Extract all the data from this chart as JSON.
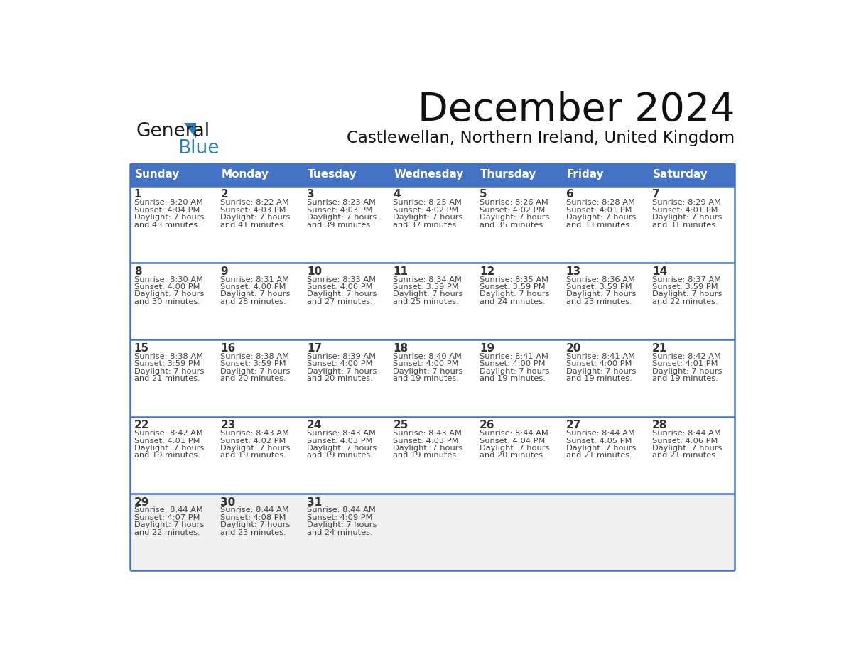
{
  "title": "December 2024",
  "subtitle": "Castlewellan, Northern Ireland, United Kingdom",
  "days_of_week": [
    "Sunday",
    "Monday",
    "Tuesday",
    "Wednesday",
    "Thursday",
    "Friday",
    "Saturday"
  ],
  "header_bg": "#4472C4",
  "header_text": "#FFFFFF",
  "row_bg_white": "#FFFFFF",
  "row_bg_gray": "#F0F0F0",
  "date_text_color": "#333333",
  "info_text_color": "#444444",
  "border_color": "#4472C4",
  "logo_dark_color": "#1a1a1a",
  "logo_blue_color": "#2980B9",
  "weeks": [
    {
      "bg": "#FFFFFF",
      "days": [
        {
          "date": "1",
          "sunrise": "8:20 AM",
          "sunset": "4:04 PM",
          "daylight_hrs": "7 hours",
          "daylight_min": "and 43 minutes."
        },
        {
          "date": "2",
          "sunrise": "8:22 AM",
          "sunset": "4:03 PM",
          "daylight_hrs": "7 hours",
          "daylight_min": "and 41 minutes."
        },
        {
          "date": "3",
          "sunrise": "8:23 AM",
          "sunset": "4:03 PM",
          "daylight_hrs": "7 hours",
          "daylight_min": "and 39 minutes."
        },
        {
          "date": "4",
          "sunrise": "8:25 AM",
          "sunset": "4:02 PM",
          "daylight_hrs": "7 hours",
          "daylight_min": "and 37 minutes."
        },
        {
          "date": "5",
          "sunrise": "8:26 AM",
          "sunset": "4:02 PM",
          "daylight_hrs": "7 hours",
          "daylight_min": "and 35 minutes."
        },
        {
          "date": "6",
          "sunrise": "8:28 AM",
          "sunset": "4:01 PM",
          "daylight_hrs": "7 hours",
          "daylight_min": "and 33 minutes."
        },
        {
          "date": "7",
          "sunrise": "8:29 AM",
          "sunset": "4:01 PM",
          "daylight_hrs": "7 hours",
          "daylight_min": "and 31 minutes."
        }
      ]
    },
    {
      "bg": "#FFFFFF",
      "days": [
        {
          "date": "8",
          "sunrise": "8:30 AM",
          "sunset": "4:00 PM",
          "daylight_hrs": "7 hours",
          "daylight_min": "and 30 minutes."
        },
        {
          "date": "9",
          "sunrise": "8:31 AM",
          "sunset": "4:00 PM",
          "daylight_hrs": "7 hours",
          "daylight_min": "and 28 minutes."
        },
        {
          "date": "10",
          "sunrise": "8:33 AM",
          "sunset": "4:00 PM",
          "daylight_hrs": "7 hours",
          "daylight_min": "and 27 minutes."
        },
        {
          "date": "11",
          "sunrise": "8:34 AM",
          "sunset": "3:59 PM",
          "daylight_hrs": "7 hours",
          "daylight_min": "and 25 minutes."
        },
        {
          "date": "12",
          "sunrise": "8:35 AM",
          "sunset": "3:59 PM",
          "daylight_hrs": "7 hours",
          "daylight_min": "and 24 minutes."
        },
        {
          "date": "13",
          "sunrise": "8:36 AM",
          "sunset": "3:59 PM",
          "daylight_hrs": "7 hours",
          "daylight_min": "and 23 minutes."
        },
        {
          "date": "14",
          "sunrise": "8:37 AM",
          "sunset": "3:59 PM",
          "daylight_hrs": "7 hours",
          "daylight_min": "and 22 minutes."
        }
      ]
    },
    {
      "bg": "#FFFFFF",
      "days": [
        {
          "date": "15",
          "sunrise": "8:38 AM",
          "sunset": "3:59 PM",
          "daylight_hrs": "7 hours",
          "daylight_min": "and 21 minutes."
        },
        {
          "date": "16",
          "sunrise": "8:38 AM",
          "sunset": "3:59 PM",
          "daylight_hrs": "7 hours",
          "daylight_min": "and 20 minutes."
        },
        {
          "date": "17",
          "sunrise": "8:39 AM",
          "sunset": "4:00 PM",
          "daylight_hrs": "7 hours",
          "daylight_min": "and 20 minutes."
        },
        {
          "date": "18",
          "sunrise": "8:40 AM",
          "sunset": "4:00 PM",
          "daylight_hrs": "7 hours",
          "daylight_min": "and 19 minutes."
        },
        {
          "date": "19",
          "sunrise": "8:41 AM",
          "sunset": "4:00 PM",
          "daylight_hrs": "7 hours",
          "daylight_min": "and 19 minutes."
        },
        {
          "date": "20",
          "sunrise": "8:41 AM",
          "sunset": "4:00 PM",
          "daylight_hrs": "7 hours",
          "daylight_min": "and 19 minutes."
        },
        {
          "date": "21",
          "sunrise": "8:42 AM",
          "sunset": "4:01 PM",
          "daylight_hrs": "7 hours",
          "daylight_min": "and 19 minutes."
        }
      ]
    },
    {
      "bg": "#FFFFFF",
      "days": [
        {
          "date": "22",
          "sunrise": "8:42 AM",
          "sunset": "4:01 PM",
          "daylight_hrs": "7 hours",
          "daylight_min": "and 19 minutes."
        },
        {
          "date": "23",
          "sunrise": "8:43 AM",
          "sunset": "4:02 PM",
          "daylight_hrs": "7 hours",
          "daylight_min": "and 19 minutes."
        },
        {
          "date": "24",
          "sunrise": "8:43 AM",
          "sunset": "4:03 PM",
          "daylight_hrs": "7 hours",
          "daylight_min": "and 19 minutes."
        },
        {
          "date": "25",
          "sunrise": "8:43 AM",
          "sunset": "4:03 PM",
          "daylight_hrs": "7 hours",
          "daylight_min": "and 19 minutes."
        },
        {
          "date": "26",
          "sunrise": "8:44 AM",
          "sunset": "4:04 PM",
          "daylight_hrs": "7 hours",
          "daylight_min": "and 20 minutes."
        },
        {
          "date": "27",
          "sunrise": "8:44 AM",
          "sunset": "4:05 PM",
          "daylight_hrs": "7 hours",
          "daylight_min": "and 21 minutes."
        },
        {
          "date": "28",
          "sunrise": "8:44 AM",
          "sunset": "4:06 PM",
          "daylight_hrs": "7 hours",
          "daylight_min": "and 21 minutes."
        }
      ]
    },
    {
      "bg": "#F0F0F0",
      "days": [
        {
          "date": "29",
          "sunrise": "8:44 AM",
          "sunset": "4:07 PM",
          "daylight_hrs": "7 hours",
          "daylight_min": "and 22 minutes."
        },
        {
          "date": "30",
          "sunrise": "8:44 AM",
          "sunset": "4:08 PM",
          "daylight_hrs": "7 hours",
          "daylight_min": "and 23 minutes."
        },
        {
          "date": "31",
          "sunrise": "8:44 AM",
          "sunset": "4:09 PM",
          "daylight_hrs": "7 hours",
          "daylight_min": "and 24 minutes."
        },
        {
          "date": "",
          "sunrise": "",
          "sunset": "",
          "daylight_hrs": "",
          "daylight_min": ""
        },
        {
          "date": "",
          "sunrise": "",
          "sunset": "",
          "daylight_hrs": "",
          "daylight_min": ""
        },
        {
          "date": "",
          "sunrise": "",
          "sunset": "",
          "daylight_hrs": "",
          "daylight_min": ""
        },
        {
          "date": "",
          "sunrise": "",
          "sunset": "",
          "daylight_hrs": "",
          "daylight_min": ""
        }
      ]
    }
  ]
}
